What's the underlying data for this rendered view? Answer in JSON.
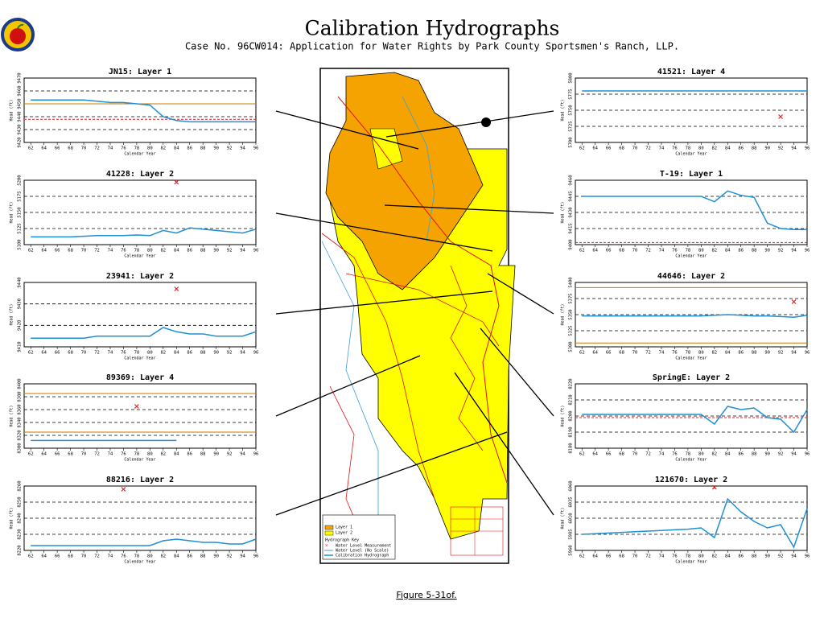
{
  "header": {
    "title": "Calibration Hydrographs",
    "subtitle": "Case No. 96CW014: Application for Water Rights by Park County Sportsmen's Ranch, LLP."
  },
  "caption": "Figure 5-31of.",
  "map": {
    "legend": [
      "Layer 1",
      "Layer 2",
      "Hydrograph Key",
      "Water Level Measurement",
      "Water Level (No Scale)",
      "Calibration Hydrograph"
    ]
  },
  "chart_data": [
    {
      "type": "line",
      "title": "JN15: Layer 1",
      "x_label": "Calendar Year",
      "y_label": "Head (ft)",
      "x": [
        62,
        64,
        66,
        68,
        70,
        72,
        74,
        76,
        78,
        80,
        82,
        84,
        86,
        88,
        90,
        92,
        94,
        96
      ],
      "xlim": [
        61,
        96
      ],
      "xticks": [
        62,
        64,
        66,
        68,
        70,
        72,
        74,
        76,
        78,
        80,
        82,
        84,
        86,
        88,
        90,
        92,
        94,
        96
      ],
      "ylim": [
        9420,
        9470
      ],
      "yticks": [
        9420,
        9430,
        9440,
        9450,
        9460,
        9470
      ],
      "grid": true,
      "series": [
        {
          "color": "#1e8fd6",
          "values": [
            9453,
            9453,
            9453,
            9453,
            9453,
            9452,
            9451,
            9451,
            9450,
            9449,
            9440,
            9437,
            9436,
            9436,
            9436,
            9436,
            9436,
            9436
          ]
        }
      ],
      "hlines": [
        {
          "value": 9450,
          "color": "#c87800",
          "dash": false
        },
        {
          "value": 9438,
          "color": "#e02020",
          "dash": true
        }
      ]
    },
    {
      "type": "line",
      "title": "41228: Layer 2",
      "x_label": "Calendar Year",
      "y_label": "Head (ft)",
      "x": [
        62,
        64,
        66,
        68,
        70,
        72,
        74,
        76,
        78,
        80,
        82,
        84,
        86,
        88,
        90,
        92,
        94,
        96
      ],
      "xlim": [
        61,
        96
      ],
      "xticks": [
        62,
        64,
        66,
        68,
        70,
        72,
        74,
        76,
        78,
        80,
        82,
        84,
        86,
        88,
        90,
        92,
        94,
        96
      ],
      "ylim": [
        5100,
        5200
      ],
      "yticks": [
        5100,
        5125,
        5150,
        5175,
        5200
      ],
      "grid": true,
      "series": [
        {
          "color": "#1e8fd6",
          "values": [
            5112,
            5112,
            5112,
            5112,
            5113,
            5114,
            5114,
            5114,
            5115,
            5114,
            5122,
            5118,
            5126,
            5124,
            5122,
            5120,
            5118,
            5124
          ]
        },
        {
          "color": "#e02020",
          "values": [
            null,
            null,
            null,
            null,
            null,
            null,
            null,
            null,
            null,
            null,
            null,
            5197,
            null,
            null,
            null,
            null,
            null,
            null
          ]
        }
      ]
    },
    {
      "type": "line",
      "title": "23941: Layer 2",
      "x_label": "Calendar Year",
      "y_label": "Head (ft)",
      "x": [
        62,
        64,
        66,
        68,
        70,
        72,
        74,
        76,
        78,
        80,
        82,
        84,
        86,
        88,
        90,
        92,
        94,
        96
      ],
      "xlim": [
        61,
        96
      ],
      "xticks": [
        62,
        64,
        66,
        68,
        70,
        72,
        74,
        76,
        78,
        80,
        82,
        84,
        86,
        88,
        90,
        92,
        94,
        96
      ],
      "ylim": [
        9410,
        9440
      ],
      "yticks": [
        9410,
        9420,
        9430,
        9440
      ],
      "grid": true,
      "series": [
        {
          "color": "#1e8fd6",
          "values": [
            9414,
            9414,
            9414,
            9414,
            9414,
            9415,
            9415,
            9415,
            9415,
            9415,
            9419,
            9417,
            9416,
            9416,
            9415,
            9415,
            9415,
            9417
          ]
        },
        {
          "color": "#e02020",
          "values": [
            null,
            null,
            null,
            null,
            null,
            null,
            null,
            null,
            null,
            null,
            null,
            9437,
            null,
            null,
            null,
            null,
            null,
            null
          ]
        }
      ]
    },
    {
      "type": "line",
      "title": "89369: Layer 4",
      "x_label": "Calendar Year",
      "y_label": "Head (ft)",
      "x": [
        62,
        64,
        66,
        68,
        70,
        72,
        74,
        76,
        78,
        80,
        82,
        84,
        86,
        88,
        90,
        92,
        94,
        96
      ],
      "xlim": [
        61,
        96
      ],
      "xticks": [
        62,
        64,
        66,
        68,
        70,
        72,
        74,
        76,
        78,
        80,
        82,
        84,
        86,
        88,
        90,
        92,
        94,
        96
      ],
      "ylim": [
        8300,
        8400
      ],
      "yticks": [
        8300,
        8320,
        8340,
        8360,
        8380,
        8400
      ],
      "grid": true,
      "series": [
        {
          "color": "#1e8fd6",
          "values": [
            8312,
            8312,
            8312,
            8312,
            8312,
            8312,
            8312,
            8312,
            8312,
            8312,
            8312,
            8312,
            null,
            null,
            null,
            null,
            null,
            null
          ]
        },
        {
          "color": "#e02020",
          "values": [
            null,
            null,
            null,
            null,
            null,
            null,
            null,
            null,
            8365,
            null,
            null,
            null,
            null,
            null,
            null,
            null,
            null,
            null
          ]
        }
      ],
      "hlines": [
        {
          "value": 8385,
          "color": "#c87800",
          "dash": false
        },
        {
          "value": 8325,
          "color": "#c87800",
          "dash": false
        }
      ]
    },
    {
      "type": "line",
      "title": "88216: Layer 2",
      "x_label": "Calendar Year",
      "y_label": "Head (ft)",
      "x": [
        62,
        64,
        66,
        68,
        70,
        72,
        74,
        76,
        78,
        80,
        82,
        84,
        86,
        88,
        90,
        92,
        94,
        96
      ],
      "xlim": [
        61,
        96
      ],
      "xticks": [
        62,
        64,
        66,
        68,
        70,
        72,
        74,
        76,
        78,
        80,
        82,
        84,
        86,
        88,
        90,
        92,
        94,
        96
      ],
      "ylim": [
        8220,
        8260
      ],
      "yticks": [
        8220,
        8230,
        8240,
        8250,
        8260
      ],
      "grid": true,
      "series": [
        {
          "color": "#1e8fd6",
          "values": [
            8223,
            8223,
            8223,
            8223,
            8223,
            8223,
            8223,
            8223,
            8223,
            8223,
            8226,
            8227,
            8226,
            8225,
            8225,
            8224,
            8224,
            8227
          ]
        },
        {
          "color": "#e02020",
          "values": [
            null,
            null,
            null,
            null,
            null,
            null,
            null,
            8258,
            null,
            null,
            null,
            null,
            null,
            null,
            null,
            null,
            null,
            null
          ]
        }
      ]
    },
    {
      "type": "line",
      "title": "41521: Layer 4",
      "x_label": "Calendar Year",
      "y_label": "Head (ft)",
      "x": [
        62,
        64,
        66,
        68,
        70,
        72,
        74,
        76,
        78,
        80,
        82,
        84,
        86,
        88,
        90,
        92,
        94,
        96
      ],
      "xlim": [
        61,
        96
      ],
      "xticks": [
        62,
        64,
        66,
        68,
        70,
        72,
        74,
        76,
        78,
        80,
        82,
        84,
        86,
        88,
        90,
        92,
        94,
        96
      ],
      "ylim": [
        5700,
        5800
      ],
      "yticks": [
        5700,
        5725,
        5750,
        5775,
        5800
      ],
      "grid": true,
      "series": [
        {
          "color": "#1e8fd6",
          "values": [
            5780,
            5780,
            5780,
            5780,
            5780,
            5780,
            5780,
            5780,
            5780,
            5780,
            5780,
            5780,
            5780,
            5780,
            5780,
            5780,
            5780,
            5780
          ]
        },
        {
          "color": "#e02020",
          "values": [
            null,
            null,
            null,
            null,
            null,
            null,
            null,
            null,
            null,
            null,
            null,
            null,
            null,
            null,
            null,
            5740,
            null,
            null
          ]
        }
      ]
    },
    {
      "type": "line",
      "title": "T-19: Layer 1",
      "x_label": "Calendar Year",
      "y_label": "Head (ft)",
      "x": [
        62,
        64,
        66,
        68,
        70,
        72,
        74,
        76,
        78,
        80,
        82,
        84,
        86,
        88,
        90,
        92,
        94,
        96
      ],
      "xlim": [
        61,
        96
      ],
      "xticks": [
        62,
        64,
        66,
        68,
        70,
        72,
        74,
        76,
        78,
        80,
        82,
        84,
        86,
        88,
        90,
        92,
        94,
        96
      ],
      "ylim": [
        9400,
        9460
      ],
      "yticks": [
        9400,
        9415,
        9430,
        9445,
        9460
      ],
      "grid": true,
      "series": [
        {
          "color": "#1e8fd6",
          "values": [
            9445,
            9445,
            9445,
            9445,
            9445,
            9445,
            9445,
            9445,
            9445,
            9445,
            9440,
            9450,
            9446,
            9444,
            9420,
            9415,
            9414,
            9414
          ]
        }
      ],
      "hlines": [
        {
          "value": 9402,
          "color": "#e02020",
          "dash": true
        }
      ]
    },
    {
      "type": "line",
      "title": "44646: Layer 2",
      "x_label": "Calendar Year",
      "y_label": "Head (ft)",
      "x": [
        62,
        64,
        66,
        68,
        70,
        72,
        74,
        76,
        78,
        80,
        82,
        84,
        86,
        88,
        90,
        92,
        94,
        96
      ],
      "xlim": [
        61,
        96
      ],
      "xticks": [
        62,
        64,
        66,
        68,
        70,
        72,
        74,
        76,
        78,
        80,
        82,
        84,
        86,
        88,
        90,
        92,
        94,
        96
      ],
      "ylim": [
        5300,
        5400
      ],
      "yticks": [
        5300,
        5325,
        5350,
        5375,
        5400
      ],
      "grid": true,
      "series": [
        {
          "color": "#1e8fd6",
          "values": [
            5348,
            5348,
            5348,
            5348,
            5348,
            5348,
            5348,
            5348,
            5348,
            5348,
            5349,
            5350,
            5349,
            5348,
            5348,
            5347,
            5346,
            5349
          ]
        },
        {
          "color": "#e02020",
          "values": [
            null,
            null,
            null,
            null,
            null,
            null,
            null,
            null,
            null,
            null,
            null,
            null,
            null,
            null,
            null,
            null,
            5370,
            null
          ]
        }
      ],
      "hlines": [
        {
          "value": 5392,
          "color": "#c87800",
          "dash": false
        },
        {
          "value": 5306,
          "color": "#c87800",
          "dash": false
        }
      ]
    },
    {
      "type": "line",
      "title": "SpringE: Layer 2",
      "x_label": "Calendar Year",
      "y_label": "Head (ft)",
      "x": [
        62,
        64,
        66,
        68,
        70,
        72,
        74,
        76,
        78,
        80,
        82,
        84,
        86,
        88,
        90,
        92,
        94,
        96
      ],
      "xlim": [
        61,
        96
      ],
      "xticks": [
        62,
        64,
        66,
        68,
        70,
        72,
        74,
        76,
        78,
        80,
        82,
        84,
        86,
        88,
        90,
        92,
        94,
        96
      ],
      "ylim": [
        8180,
        8220
      ],
      "yticks": [
        8180,
        8190,
        8200,
        8210,
        8220
      ],
      "grid": true,
      "series": [
        {
          "color": "#1e8fd6",
          "values": [
            8201,
            8201,
            8201,
            8201,
            8201,
            8201,
            8201,
            8201,
            8201,
            8201,
            8195,
            8206,
            8204,
            8205,
            8199,
            8198,
            8190,
            8204
          ]
        }
      ],
      "hlines": [
        {
          "value": 8199,
          "color": "#e02020",
          "dash": true
        }
      ]
    },
    {
      "type": "line",
      "title": "121670: Layer 2",
      "x_label": "Calendar Year",
      "y_label": "Head (ft)",
      "x": [
        62,
        64,
        66,
        68,
        70,
        72,
        74,
        76,
        78,
        80,
        82,
        84,
        86,
        88,
        90,
        92,
        94,
        96
      ],
      "xlim": [
        61,
        96
      ],
      "xticks": [
        62,
        64,
        66,
        68,
        70,
        72,
        74,
        76,
        78,
        80,
        82,
        84,
        86,
        88,
        90,
        92,
        94,
        96
      ],
      "ylim": [
        5960,
        6060
      ],
      "yticks": [
        5960,
        5985,
        6010,
        6035,
        6060
      ],
      "grid": true,
      "series": [
        {
          "color": "#1e8fd6",
          "values": [
            5985,
            5986,
            5987,
            5988,
            5989,
            5990,
            5991,
            5992,
            5993,
            5995,
            5980,
            6040,
            6020,
            6005,
            5995,
            6000,
            5965,
            6025
          ]
        },
        {
          "color": "#e02020",
          "values": [
            null,
            null,
            null,
            null,
            null,
            null,
            null,
            null,
            null,
            null,
            6058,
            null,
            null,
            null,
            null,
            null,
            null,
            null
          ]
        }
      ]
    }
  ]
}
